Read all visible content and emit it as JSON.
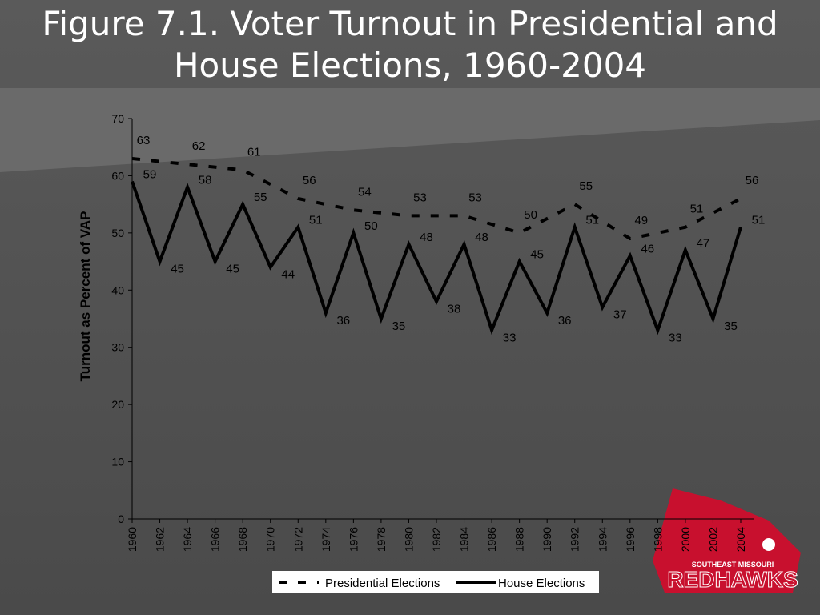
{
  "chart_data": {
    "type": "line",
    "title": "Figure 7.1. Voter Turnout in Presidential and House Elections, 1960-2004",
    "y_label": "Turnout as Percent of VAP",
    "xlim": [
      1960,
      2004
    ],
    "xticks": [
      1960,
      1962,
      1964,
      1966,
      1968,
      1970,
      1972,
      1974,
      1976,
      1978,
      1980,
      1982,
      1984,
      1986,
      1988,
      1990,
      1992,
      1994,
      1996,
      1998,
      2000,
      2002,
      2004
    ],
    "ylim": [
      0,
      70
    ],
    "yticks": [
      0,
      10,
      20,
      30,
      40,
      50,
      60,
      70
    ],
    "grid": false,
    "legend": "bottom",
    "series": [
      {
        "name": "Presidential Elections",
        "color": "#000000",
        "dash": true,
        "x": [
          1960,
          1964,
          1968,
          1972,
          1976,
          1980,
          1984,
          1988,
          1992,
          1996,
          2000,
          2004
        ],
        "values": [
          63,
          62,
          61,
          56,
          54,
          53,
          53,
          50,
          55,
          49,
          51,
          56
        ]
      },
      {
        "name": "House Elections",
        "color": "#000000",
        "dash": false,
        "x": [
          1960,
          1962,
          1964,
          1966,
          1968,
          1970,
          1972,
          1974,
          1976,
          1978,
          1980,
          1982,
          1984,
          1986,
          1988,
          1990,
          1992,
          1994,
          1996,
          1998,
          2000,
          2002,
          2004
        ],
        "values": [
          59,
          45,
          58,
          45,
          55,
          44,
          51,
          36,
          50,
          35,
          48,
          38,
          48,
          33,
          45,
          36,
          51,
          37,
          46,
          33,
          47,
          35,
          51
        ]
      }
    ]
  },
  "logo": {
    "top": "SOUTHEAST MISSOURI",
    "name": "REDHAWKS"
  }
}
